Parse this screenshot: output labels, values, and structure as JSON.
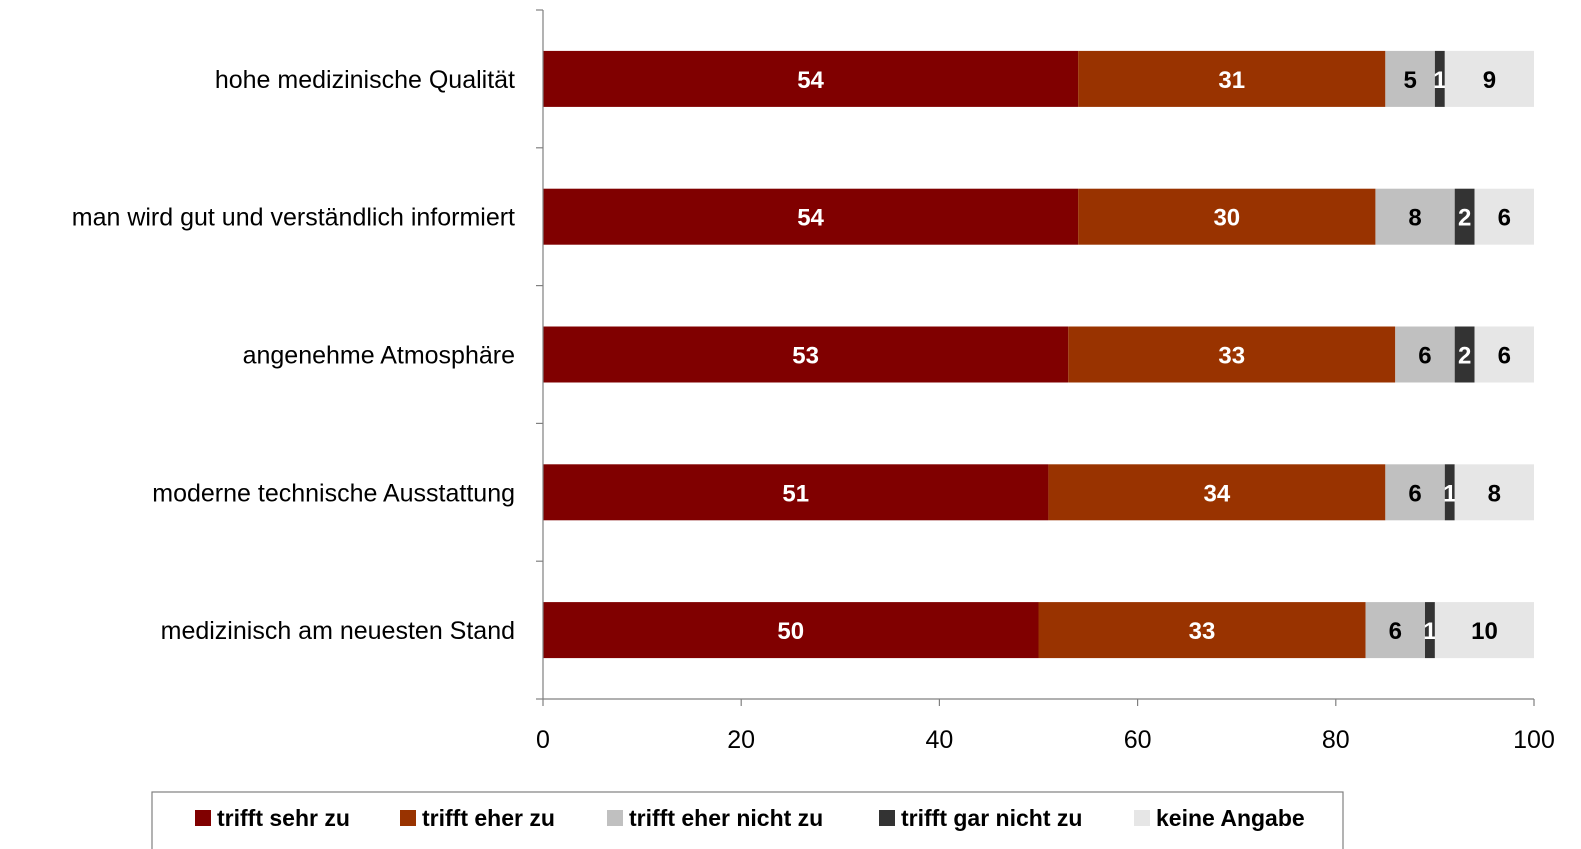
{
  "chart_data": {
    "type": "bar",
    "orientation": "horizontal",
    "stacked": true,
    "categories": [
      "hohe medizinische Qualität",
      "man wird gut und verständlich informiert",
      "angenehme Atmosphäre",
      "moderne technische Ausstattung",
      "medizinisch am neuesten Stand"
    ],
    "series": [
      {
        "name": "trifft sehr zu",
        "color": "#800000",
        "label_color": "#ffffff",
        "values": [
          54,
          54,
          53,
          51,
          50
        ]
      },
      {
        "name": "trifft eher zu",
        "color": "#993300",
        "label_color": "#ffffff",
        "values": [
          31,
          30,
          33,
          34,
          33
        ]
      },
      {
        "name": "trifft eher nicht zu",
        "color": "#c0c0c0",
        "label_color": "#000000",
        "values": [
          5,
          8,
          6,
          6,
          6
        ]
      },
      {
        "name": "trifft gar nicht zu",
        "color": "#333333",
        "label_color": "#ffffff",
        "values": [
          1,
          2,
          2,
          1,
          1
        ]
      },
      {
        "name": "keine Angabe",
        "color": "#e6e6e6",
        "label_color": "#000000",
        "values": [
          9,
          6,
          6,
          8,
          10
        ]
      }
    ],
    "xlim": [
      0,
      100
    ],
    "x_ticks": [
      "0",
      "20",
      "40",
      "60",
      "80",
      "100"
    ],
    "grid": false,
    "legend_position": "bottom"
  }
}
